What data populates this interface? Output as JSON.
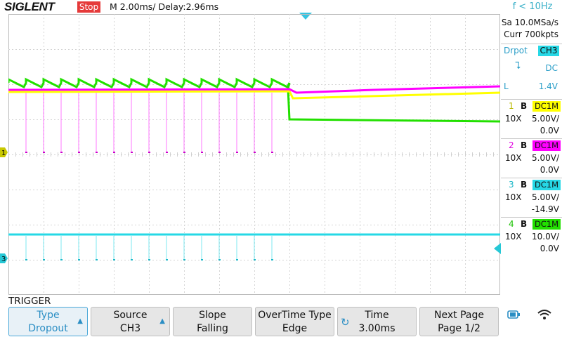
{
  "header": {
    "brand": "SIGLENT",
    "run_state": "Stop",
    "timebase": "M 2.00ms/ Delay:2.96ms",
    "frequency": "f < 10Hz"
  },
  "acquisition": {
    "sample_rate": "Sa 10.0MSa/s",
    "memory": "Curr 700kpts"
  },
  "trigger_info": {
    "mode": "Drpot",
    "source": "CH3",
    "slope_symbol": "⮧",
    "coupling": "DC",
    "level_label": "L",
    "level": "1.4V"
  },
  "channels": [
    {
      "num": "1",
      "bw": "B",
      "coupling": "DC1M",
      "probe": "10X",
      "scale": "5.00V/",
      "offset": "0.0V",
      "color": "#ffff00"
    },
    {
      "num": "2",
      "bw": "B",
      "coupling": "DC1M",
      "probe": "10X",
      "scale": "5.00V/",
      "offset": "0.0V",
      "color": "#ff00ff"
    },
    {
      "num": "3",
      "bw": "B",
      "coupling": "DC1M",
      "probe": "10X",
      "scale": "5.00V/",
      "offset": "-14.9V",
      "color": "#26d8e6"
    },
    {
      "num": "4",
      "bw": "B",
      "coupling": "DC1M",
      "probe": "10X",
      "scale": "10.0V/",
      "offset": "0.0V",
      "color": "#22e000"
    }
  ],
  "markers": {
    "ch1": "1",
    "ch3": "3"
  },
  "trigger_menu": {
    "title": "TRIGGER",
    "softkeys": [
      {
        "top": "Type",
        "bottom": "Dropout"
      },
      {
        "top": "Source",
        "bottom": "CH3"
      },
      {
        "top": "Slope",
        "bottom": "Falling"
      },
      {
        "top": "OverTime Type",
        "bottom": "Edge"
      },
      {
        "top": "Time",
        "bottom": "3.00ms"
      },
      {
        "top": "Next Page",
        "bottom": "Page 1/2"
      }
    ]
  },
  "icons": {
    "status1": "usb-icon",
    "status2": "wifi-icon"
  }
}
